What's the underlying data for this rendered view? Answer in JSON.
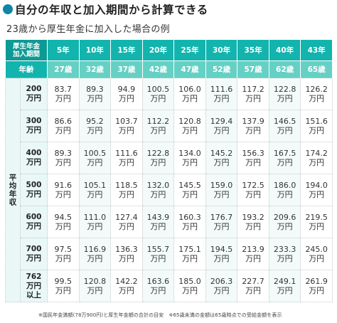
{
  "title": "自分の年収と加入期間から計算できる",
  "subtitle": "23歳から厚生年金に加入した場合の例",
  "header": {
    "corner_top": "厚生年金",
    "corner_bottom": "加入期間",
    "periods": [
      "5年",
      "10年",
      "15年",
      "20年",
      "25年",
      "30年",
      "35年",
      "40年",
      "43年"
    ],
    "age_label": "年齢",
    "ages": [
      "27歳",
      "32歳",
      "37歳",
      "42歳",
      "47歳",
      "52歳",
      "57歳",
      "62歳",
      "65歳"
    ]
  },
  "side_label": "平均年収",
  "rows": [
    {
      "income_top": "200",
      "income_bottom": "万円",
      "income_extra": "",
      "values": [
        "83.7",
        "89.3",
        "94.9",
        "100.5",
        "106.0",
        "111.6",
        "117.2",
        "122.8",
        "126.2"
      ]
    },
    {
      "income_top": "300",
      "income_bottom": "万円",
      "income_extra": "",
      "values": [
        "86.6",
        "95.2",
        "103.7",
        "112.2",
        "120.8",
        "129.4",
        "137.9",
        "146.5",
        "151.6"
      ]
    },
    {
      "income_top": "400",
      "income_bottom": "万円",
      "income_extra": "",
      "values": [
        "89.3",
        "100.5",
        "111.6",
        "122.8",
        "134.0",
        "145.2",
        "156.3",
        "167.5",
        "174.2"
      ]
    },
    {
      "income_top": "500",
      "income_bottom": "万円",
      "income_extra": "",
      "values": [
        "91.6",
        "105.1",
        "118.5",
        "132.0",
        "145.5",
        "159.0",
        "172.5",
        "186.0",
        "194.0"
      ]
    },
    {
      "income_top": "600",
      "income_bottom": "万円",
      "income_extra": "",
      "values": [
        "94.5",
        "111.0",
        "127.4",
        "143.9",
        "160.3",
        "176.7",
        "193.2",
        "209.6",
        "219.5"
      ]
    },
    {
      "income_top": "700",
      "income_bottom": "万円",
      "income_extra": "",
      "values": [
        "97.5",
        "116.9",
        "136.3",
        "155.7",
        "175.1",
        "194.5",
        "213.9",
        "233.3",
        "245.0"
      ]
    },
    {
      "income_top": "762",
      "income_bottom": "万円",
      "income_extra": "以上",
      "values": [
        "99.5",
        "120.8",
        "142.2",
        "163.6",
        "185.0",
        "206.3",
        "227.7",
        "249.1",
        "261.9"
      ]
    }
  ],
  "unit": "万円",
  "footnote": "※国民年金満額(78万900円)と厚生年金額の合計の目安　※65歳未満の金額は65歳時点での受給金額を表示",
  "colors": {
    "header_teal": "#12b4ad",
    "age_teal": "#65d0c4",
    "row_label_bg": "#e9f8f7",
    "title_dot": "#0f86a5"
  }
}
